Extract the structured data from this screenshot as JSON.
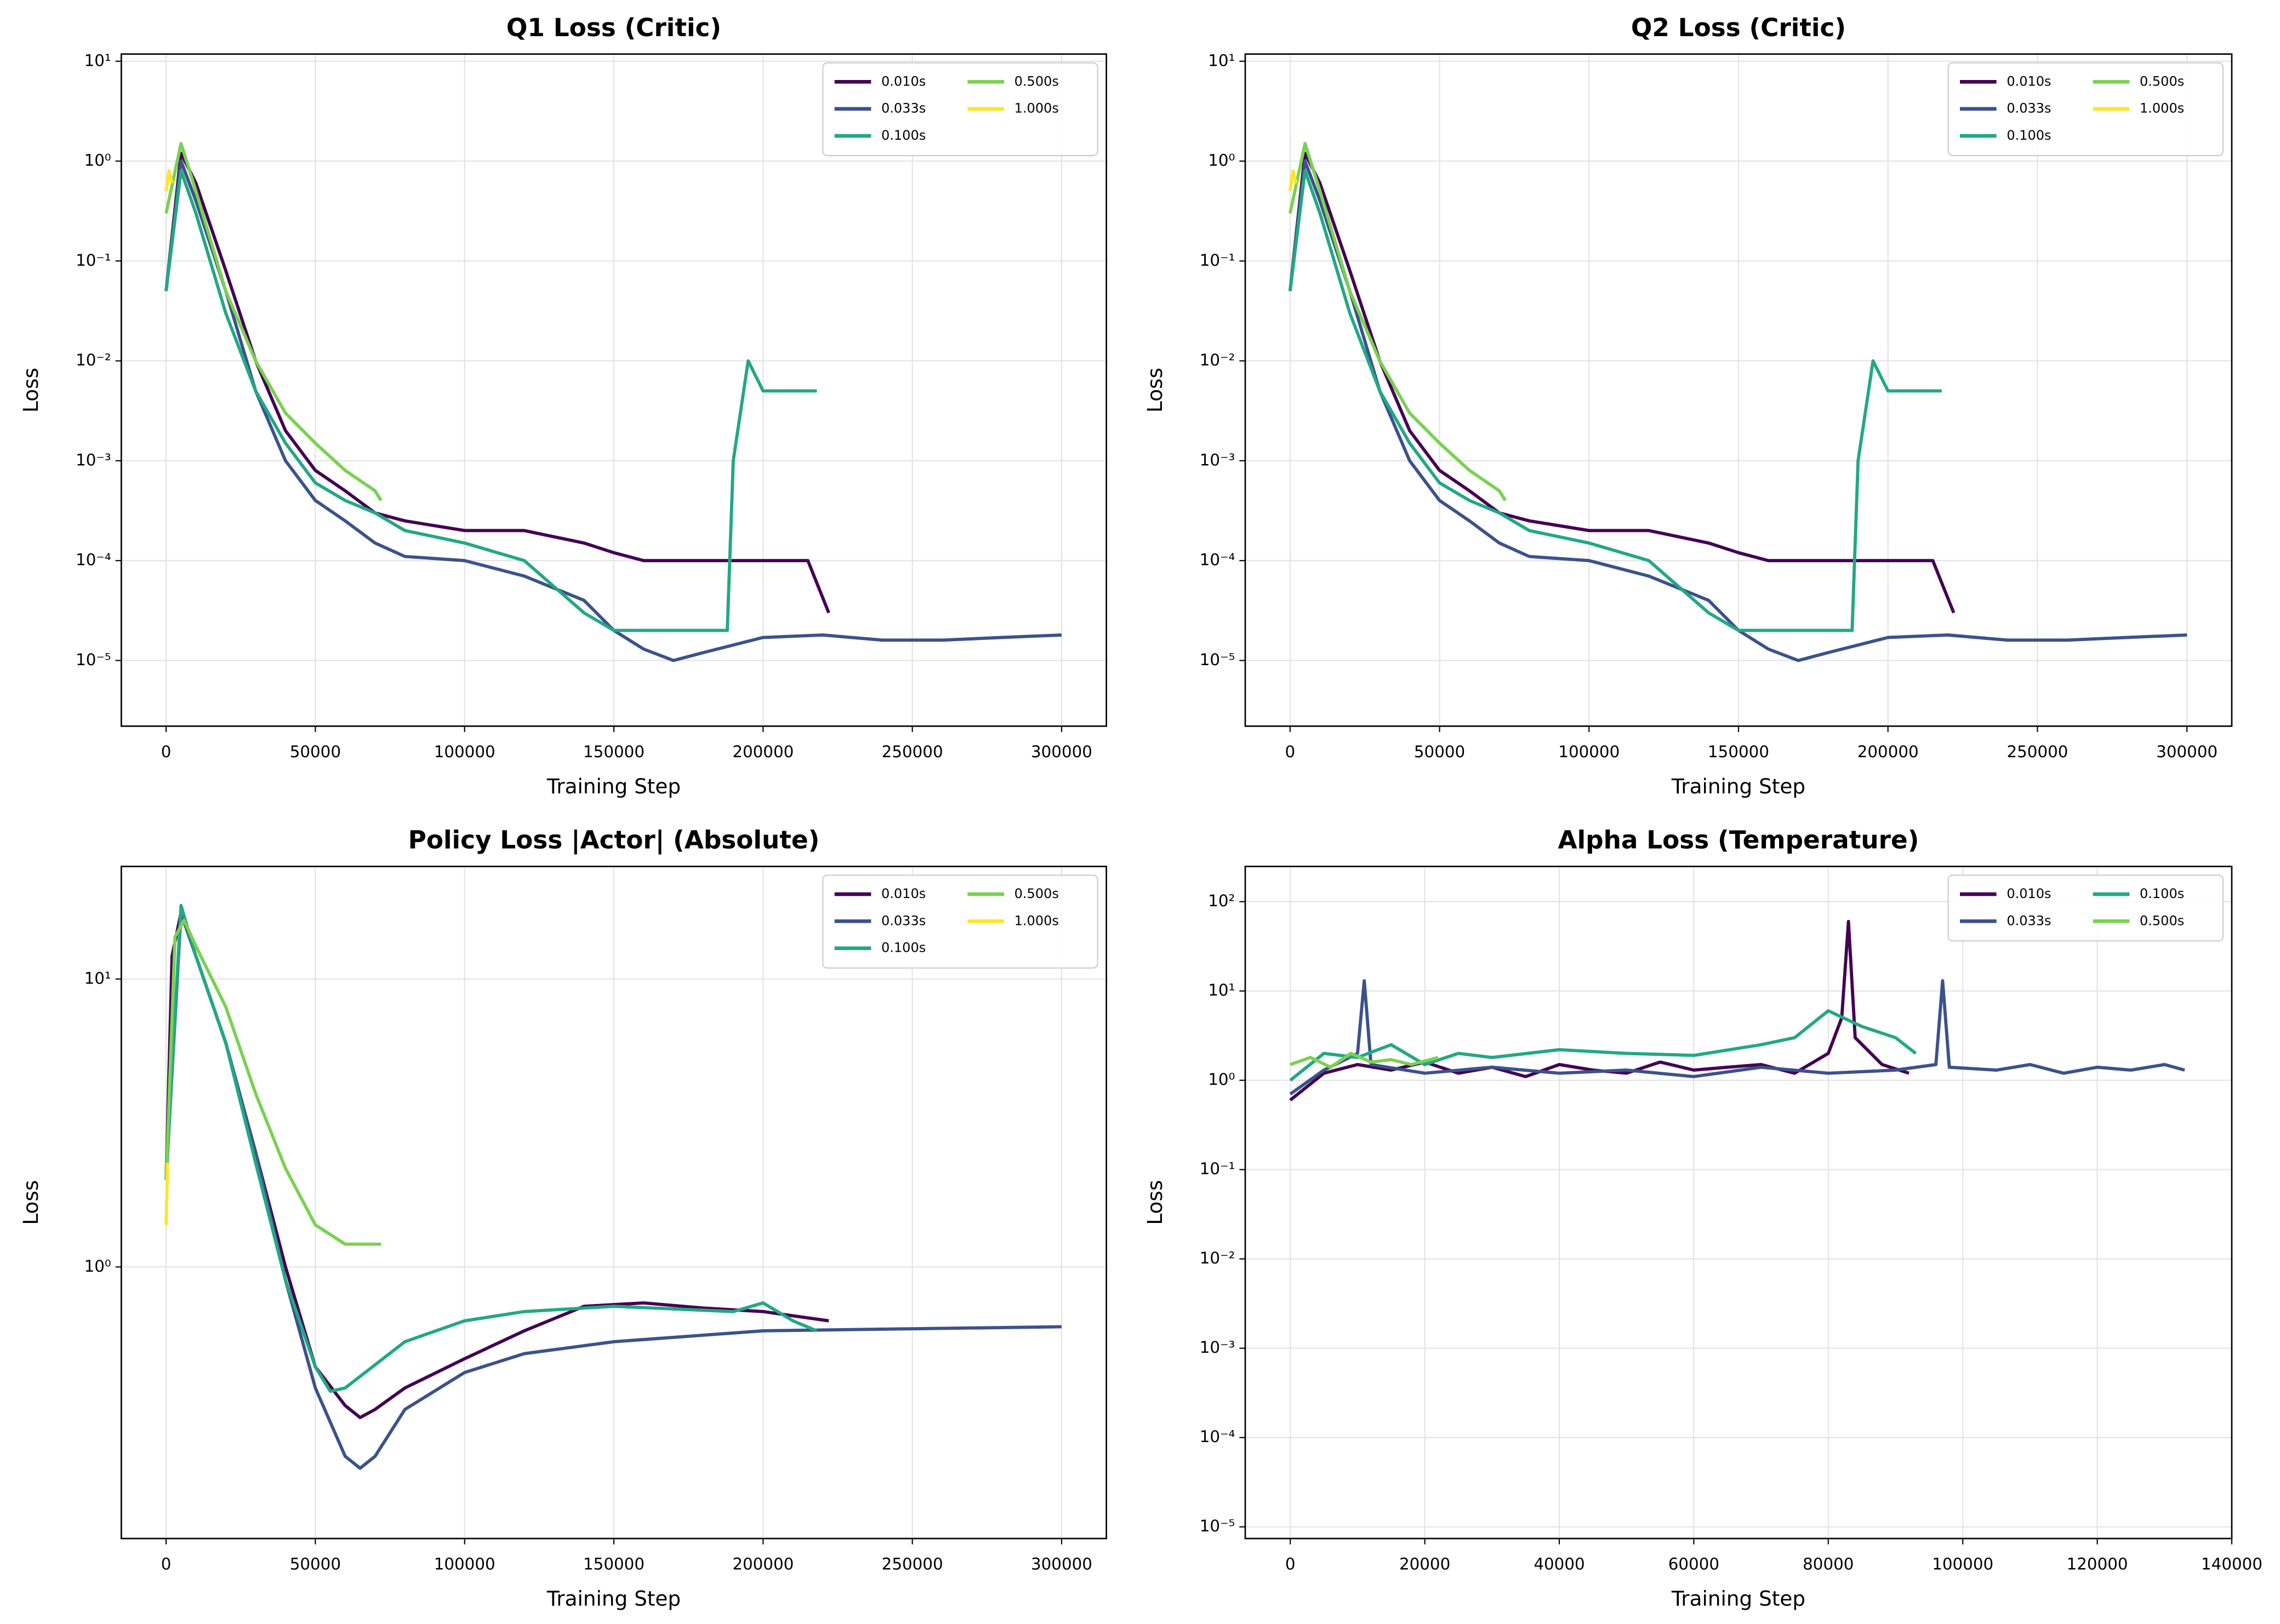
{
  "chart_data": [
    {
      "type": "line",
      "title": "Q1 Loss (Critic)",
      "xlabel": "Training Step",
      "ylabel": "Loss",
      "yscale": "log",
      "grid": true,
      "legend": "upper right",
      "legend_ncol": 2,
      "xlim": [
        -15000,
        315000
      ],
      "xticks": [
        0,
        50000,
        100000,
        150000,
        200000,
        250000,
        300000
      ],
      "ylim": [
        2.2e-06,
        11.8
      ],
      "yticks": [
        {
          "value": 1e-05,
          "label": "10⁻⁵"
        },
        {
          "value": 0.0001,
          "label": "10⁻⁴"
        },
        {
          "value": 0.001,
          "label": "10⁻³"
        },
        {
          "value": 0.01,
          "label": "10⁻²"
        },
        {
          "value": 0.1,
          "label": "10⁻¹"
        },
        {
          "value": 1,
          "label": "10⁰"
        },
        {
          "value": 10,
          "label": "10¹"
        }
      ],
      "series": [
        {
          "name": "0.010s",
          "color": "#440154",
          "x": [
            0,
            5000,
            10000,
            20000,
            30000,
            40000,
            50000,
            60000,
            70000,
            80000,
            100000,
            120000,
            140000,
            150000,
            160000,
            180000,
            200000,
            215000,
            222000
          ],
          "values": [
            0.05,
            1.2,
            0.6,
            0.08,
            0.01,
            0.002,
            0.0008,
            0.0005,
            0.0003,
            0.00025,
            0.0002,
            0.0002,
            0.00015,
            0.00012,
            0.0001,
            0.0001,
            0.0001,
            0.0001,
            3e-05
          ]
        },
        {
          "name": "0.033s",
          "color": "#3b528b",
          "x": [
            0,
            5000,
            10000,
            20000,
            30000,
            40000,
            50000,
            60000,
            70000,
            80000,
            100000,
            120000,
            140000,
            150000,
            160000,
            170000,
            180000,
            200000,
            220000,
            240000,
            260000,
            280000,
            300000
          ],
          "values": [
            0.05,
            1.0,
            0.4,
            0.05,
            0.005,
            0.001,
            0.0004,
            0.00025,
            0.00015,
            0.00011,
            0.0001,
            7e-05,
            4e-05,
            2e-05,
            1.3e-05,
            1e-05,
            1.2e-05,
            1.7e-05,
            1.8e-05,
            1.6e-05,
            1.6e-05,
            1.7e-05,
            1.8e-05
          ]
        },
        {
          "name": "0.100s",
          "color": "#22a884",
          "x": [
            0,
            5000,
            10000,
            20000,
            30000,
            40000,
            50000,
            60000,
            70000,
            80000,
            100000,
            120000,
            140000,
            150000,
            170000,
            188000,
            190000,
            195000,
            200000,
            210000,
            218000
          ],
          "values": [
            0.05,
            0.8,
            0.3,
            0.03,
            0.005,
            0.0015,
            0.0006,
            0.0004,
            0.0003,
            0.0002,
            0.00015,
            0.0001,
            3e-05,
            2e-05,
            2e-05,
            2e-05,
            0.001,
            0.01,
            0.005,
            0.005,
            0.005
          ]
        },
        {
          "name": "0.500s",
          "color": "#7ad151",
          "x": [
            0,
            5000,
            10000,
            20000,
            30000,
            40000,
            50000,
            60000,
            70000,
            72000
          ],
          "values": [
            0.3,
            1.5,
            0.5,
            0.05,
            0.01,
            0.003,
            0.0015,
            0.0008,
            0.0005,
            0.0004
          ]
        },
        {
          "name": "1.000s",
          "color": "#fde725",
          "x": [
            0,
            1000,
            2000
          ],
          "values": [
            0.5,
            0.8,
            0.6
          ]
        }
      ]
    },
    {
      "type": "line",
      "title": "Q2 Loss (Critic)",
      "xlabel": "Training Step",
      "ylabel": "Loss",
      "yscale": "log",
      "grid": true,
      "legend": "upper right",
      "legend_ncol": 2,
      "xlim": [
        -15000,
        315000
      ],
      "xticks": [
        0,
        50000,
        100000,
        150000,
        200000,
        250000,
        300000
      ],
      "ylim": [
        2.2e-06,
        11.8
      ],
      "yticks": [
        {
          "value": 1e-05,
          "label": "10⁻⁵"
        },
        {
          "value": 0.0001,
          "label": "10⁻⁴"
        },
        {
          "value": 0.001,
          "label": "10⁻³"
        },
        {
          "value": 0.01,
          "label": "10⁻²"
        },
        {
          "value": 0.1,
          "label": "10⁻¹"
        },
        {
          "value": 1,
          "label": "10⁰"
        },
        {
          "value": 10,
          "label": "10¹"
        }
      ],
      "series": [
        {
          "name": "0.010s",
          "color": "#440154",
          "x": [
            0,
            5000,
            10000,
            20000,
            30000,
            40000,
            50000,
            60000,
            70000,
            80000,
            100000,
            120000,
            140000,
            150000,
            160000,
            180000,
            200000,
            215000,
            222000
          ],
          "values": [
            0.05,
            1.2,
            0.6,
            0.08,
            0.01,
            0.002,
            0.0008,
            0.0005,
            0.0003,
            0.00025,
            0.0002,
            0.0002,
            0.00015,
            0.00012,
            0.0001,
            0.0001,
            0.0001,
            0.0001,
            3e-05
          ]
        },
        {
          "name": "0.033s",
          "color": "#3b528b",
          "x": [
            0,
            5000,
            10000,
            20000,
            30000,
            40000,
            50000,
            60000,
            70000,
            80000,
            100000,
            120000,
            140000,
            150000,
            160000,
            170000,
            180000,
            200000,
            220000,
            240000,
            260000,
            280000,
            300000
          ],
          "values": [
            0.05,
            1.0,
            0.4,
            0.05,
            0.005,
            0.001,
            0.0004,
            0.00025,
            0.00015,
            0.00011,
            0.0001,
            7e-05,
            4e-05,
            2e-05,
            1.3e-05,
            1e-05,
            1.2e-05,
            1.7e-05,
            1.8e-05,
            1.6e-05,
            1.6e-05,
            1.7e-05,
            1.8e-05
          ]
        },
        {
          "name": "0.100s",
          "color": "#22a884",
          "x": [
            0,
            5000,
            10000,
            20000,
            30000,
            40000,
            50000,
            60000,
            70000,
            80000,
            100000,
            120000,
            140000,
            150000,
            170000,
            188000,
            190000,
            195000,
            200000,
            210000,
            218000
          ],
          "values": [
            0.05,
            0.8,
            0.3,
            0.03,
            0.005,
            0.0015,
            0.0006,
            0.0004,
            0.0003,
            0.0002,
            0.00015,
            0.0001,
            3e-05,
            2e-05,
            2e-05,
            2e-05,
            0.001,
            0.01,
            0.005,
            0.005,
            0.005
          ]
        },
        {
          "name": "0.500s",
          "color": "#7ad151",
          "x": [
            0,
            5000,
            10000,
            20000,
            30000,
            40000,
            50000,
            60000,
            70000,
            72000
          ],
          "values": [
            0.3,
            1.5,
            0.5,
            0.05,
            0.01,
            0.003,
            0.0015,
            0.0008,
            0.0005,
            0.0004
          ]
        },
        {
          "name": "1.000s",
          "color": "#fde725",
          "x": [
            0,
            1000,
            2000
          ],
          "values": [
            0.5,
            0.8,
            0.6
          ]
        }
      ]
    },
    {
      "type": "line",
      "title": "Policy Loss |Actor| (Absolute)",
      "xlabel": "Training Step",
      "ylabel": "Loss",
      "yscale": "log",
      "grid": true,
      "legend": "upper right",
      "legend_ncol": 2,
      "xlim": [
        -15000,
        315000
      ],
      "xticks": [
        0,
        50000,
        100000,
        150000,
        200000,
        250000,
        300000
      ],
      "ylim": [
        0.114,
        24.6
      ],
      "yticks": [
        {
          "value": 1,
          "label": "10⁰"
        },
        {
          "value": 10,
          "label": "10¹"
        }
      ],
      "series": [
        {
          "name": "0.010s",
          "color": "#440154",
          "x": [
            0,
            2000,
            5000,
            10000,
            20000,
            30000,
            40000,
            50000,
            60000,
            65000,
            70000,
            80000,
            100000,
            120000,
            140000,
            160000,
            180000,
            200000,
            222000
          ],
          "values": [
            2,
            12,
            17,
            12,
            6,
            2.5,
            1,
            0.45,
            0.33,
            0.3,
            0.32,
            0.38,
            0.48,
            0.6,
            0.73,
            0.75,
            0.72,
            0.7,
            0.65
          ]
        },
        {
          "name": "0.033s",
          "color": "#3b528b",
          "x": [
            0,
            5000,
            10000,
            20000,
            30000,
            40000,
            50000,
            60000,
            65000,
            70000,
            80000,
            100000,
            120000,
            150000,
            200000,
            250000,
            300000
          ],
          "values": [
            2,
            17,
            12,
            6,
            2.5,
            0.9,
            0.38,
            0.22,
            0.2,
            0.22,
            0.32,
            0.43,
            0.5,
            0.55,
            0.6,
            0.61,
            0.62
          ]
        },
        {
          "name": "0.100s",
          "color": "#22a884",
          "x": [
            0,
            5000,
            10000,
            20000,
            30000,
            40000,
            50000,
            55000,
            60000,
            80000,
            100000,
            120000,
            150000,
            190000,
            200000,
            210000,
            218000
          ],
          "values": [
            2,
            18,
            12,
            6,
            2.3,
            0.9,
            0.45,
            0.37,
            0.38,
            0.55,
            0.65,
            0.7,
            0.73,
            0.7,
            0.75,
            0.65,
            0.6
          ]
        },
        {
          "name": "0.500s",
          "color": "#7ad151",
          "x": [
            0,
            3000,
            6000,
            10000,
            20000,
            30000,
            40000,
            50000,
            60000,
            72000
          ],
          "values": [
            2,
            14,
            16,
            13,
            8,
            4,
            2.2,
            1.4,
            1.2,
            1.2
          ]
        },
        {
          "name": "1.000s",
          "color": "#fde725",
          "x": [
            0,
            500
          ],
          "values": [
            1.4,
            2.3
          ]
        }
      ]
    },
    {
      "type": "line",
      "title": "Alpha Loss (Temperature)",
      "xlabel": "Training Step",
      "ylabel": "Loss",
      "yscale": "log",
      "grid": true,
      "legend": "upper right",
      "legend_ncol": 2,
      "xlim": [
        -6700,
        140000
      ],
      "xticks": [
        0,
        20000,
        40000,
        60000,
        80000,
        100000,
        120000,
        140000
      ],
      "ylim": [
        7.4e-06,
        248
      ],
      "yticks": [
        {
          "value": 1e-05,
          "label": "10⁻⁵"
        },
        {
          "value": 0.0001,
          "label": "10⁻⁴"
        },
        {
          "value": 0.001,
          "label": "10⁻³"
        },
        {
          "value": 0.01,
          "label": "10⁻²"
        },
        {
          "value": 0.1,
          "label": "10⁻¹"
        },
        {
          "value": 1,
          "label": "10⁰"
        },
        {
          "value": 10,
          "label": "10¹"
        },
        {
          "value": 100,
          "label": "10²"
        }
      ],
      "series": [
        {
          "name": "0.010s",
          "color": "#440154",
          "x": [
            0,
            5000,
            10000,
            15000,
            20000,
            25000,
            30000,
            35000,
            40000,
            45000,
            50000,
            55000,
            60000,
            65000,
            70000,
            75000,
            80000,
            82000,
            83000,
            84000,
            88000,
            92000
          ],
          "values": [
            0.6,
            1.2,
            1.5,
            1.3,
            1.6,
            1.2,
            1.4,
            1.1,
            1.5,
            1.3,
            1.2,
            1.6,
            1.3,
            1.4,
            1.5,
            1.2,
            2,
            5,
            60,
            3,
            1.5,
            1.2
          ]
        },
        {
          "name": "0.033s",
          "color": "#3b528b",
          "x": [
            0,
            5000,
            10000,
            11000,
            12000,
            20000,
            30000,
            40000,
            50000,
            60000,
            70000,
            80000,
            90000,
            96000,
            97000,
            98000,
            105000,
            110000,
            115000,
            120000,
            125000,
            130000,
            133000
          ],
          "values": [
            0.7,
            1.3,
            2,
            13,
            1.5,
            1.2,
            1.4,
            1.2,
            1.3,
            1.1,
            1.4,
            1.2,
            1.3,
            1.5,
            13,
            1.4,
            1.3,
            1.5,
            1.2,
            1.4,
            1.3,
            1.5,
            1.3
          ]
        },
        {
          "name": "0.100s",
          "color": "#22a884",
          "x": [
            0,
            5000,
            10000,
            15000,
            20000,
            25000,
            30000,
            40000,
            50000,
            60000,
            70000,
            75000,
            80000,
            85000,
            90000,
            93000
          ],
          "values": [
            1,
            2,
            1.8,
            2.5,
            1.5,
            2,
            1.8,
            2.2,
            2,
            1.9,
            2.5,
            3,
            6,
            4,
            3,
            2
          ]
        },
        {
          "name": "0.500s",
          "color": "#7ad151",
          "x": [
            0,
            3000,
            6000,
            9000,
            12000,
            15000,
            18000,
            22000
          ],
          "values": [
            1.5,
            1.8,
            1.4,
            2,
            1.6,
            1.7,
            1.5,
            1.8
          ]
        }
      ]
    }
  ]
}
